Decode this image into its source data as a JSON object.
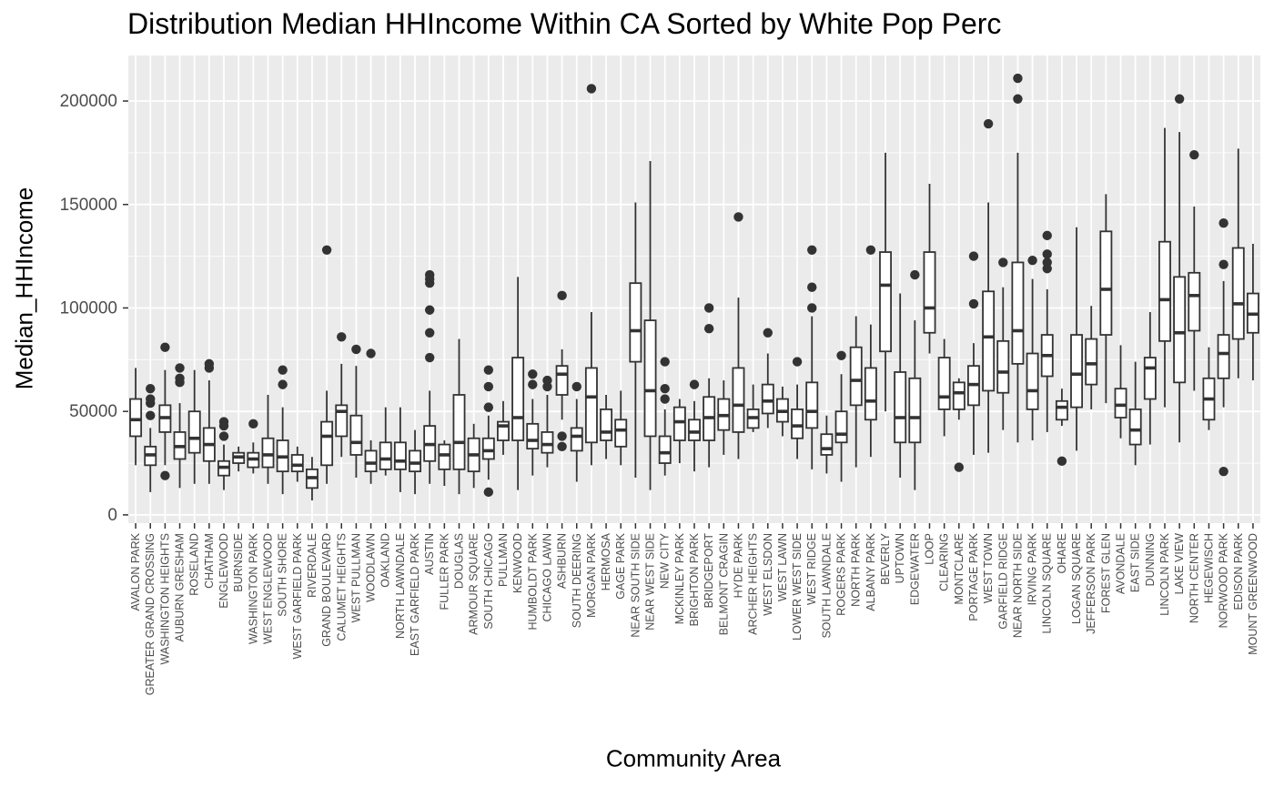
{
  "chart_data": {
    "type": "box",
    "title": "Distribution Median HHIncome Within CA Sorted by White Pop Perc",
    "xlabel": "Community Area",
    "ylabel": "Median_HHIncome",
    "ylim": [
      -4000,
      222000
    ],
    "y_ticks": [
      0,
      50000,
      100000,
      150000,
      200000
    ],
    "y_tick_labels": [
      "0",
      "50000",
      "100000",
      "150000",
      "200000"
    ],
    "grid": true,
    "colors": {
      "panel": "#EBEBEB",
      "grid": "#FFFFFF",
      "box_fill": "#FFFFFF",
      "box_line": "#333333",
      "outlier": "#333333"
    },
    "categories": [
      "AVALON PARK",
      "GREATER GRAND CROSSING",
      "WASHINGTON HEIGHTS",
      "AUBURN GRESHAM",
      "ROSELAND",
      "CHATHAM",
      "ENGLEWOOD",
      "BURNSIDE",
      "WASHINGTON PARK",
      "WEST ENGLEWOOD",
      "SOUTH SHORE",
      "WEST GARFIELD PARK",
      "RIVERDALE",
      "GRAND BOULEVARD",
      "CALUMET HEIGHTS",
      "WEST PULLMAN",
      "WOODLAWN",
      "OAKLAND",
      "NORTH LAWNDALE",
      "EAST GARFIELD PARK",
      "AUSTIN",
      "FULLER PARK",
      "DOUGLAS",
      "ARMOUR SQUARE",
      "SOUTH CHICAGO",
      "PULLMAN",
      "KENWOOD",
      "HUMBOLDT PARK",
      "CHICAGO LAWN",
      "ASHBURN",
      "SOUTH DEERING",
      "MORGAN PARK",
      "HERMOSA",
      "GAGE PARK",
      "NEAR SOUTH SIDE",
      "NEAR WEST SIDE",
      "NEW CITY",
      "MCKINLEY PARK",
      "BRIGHTON PARK",
      "BRIDGEPORT",
      "BELMONT CRAGIN",
      "HYDE PARK",
      "ARCHER HEIGHTS",
      "WEST ELSDON",
      "WEST LAWN",
      "LOWER WEST SIDE",
      "WEST RIDGE",
      "SOUTH LAWNDALE",
      "ROGERS PARK",
      "NORTH PARK",
      "ALBANY PARK",
      "BEVERLY",
      "UPTOWN",
      "EDGEWATER",
      "LOOP",
      "CLEARING",
      "MONTCLARE",
      "PORTAGE PARK",
      "WEST TOWN",
      "GARFIELD RIDGE",
      "NEAR NORTH SIDE",
      "IRVING PARK",
      "LINCOLN SQUARE",
      "OHARE",
      "LOGAN SQUARE",
      "JEFFERSON PARK",
      "FOREST GLEN",
      "AVONDALE",
      "EAST SIDE",
      "DUNNING",
      "LINCOLN PARK",
      "LAKE VIEW",
      "NORTH CENTER",
      "HEGEWISCH",
      "NORWOOD PARK",
      "EDISON PARK",
      "MOUNT GREENWOOD"
    ],
    "boxes": [
      {
        "whisker_low": 24000,
        "q1": 38000,
        "median": 46000,
        "q3": 56000,
        "whisker_high": 71000,
        "outliers": []
      },
      {
        "whisker_low": 11000,
        "q1": 24000,
        "median": 29000,
        "q3": 33000,
        "whisker_high": 42000,
        "outliers": [
          48000,
          54000,
          56000,
          61000
        ]
      },
      {
        "whisker_low": 24000,
        "q1": 40000,
        "median": 47000,
        "q3": 53000,
        "whisker_high": 70000,
        "outliers": [
          19000,
          81000
        ]
      },
      {
        "whisker_low": 13000,
        "q1": 27000,
        "median": 33000,
        "q3": 40000,
        "whisker_high": 54000,
        "outliers": [
          64000,
          66000,
          71000
        ]
      },
      {
        "whisker_low": 15000,
        "q1": 30000,
        "median": 37000,
        "q3": 50000,
        "whisker_high": 70000,
        "outliers": []
      },
      {
        "whisker_low": 15000,
        "q1": 26000,
        "median": 34000,
        "q3": 42000,
        "whisker_high": 65000,
        "outliers": [
          71000,
          73000
        ]
      },
      {
        "whisker_low": 12000,
        "q1": 19000,
        "median": 23000,
        "q3": 26000,
        "whisker_high": 34000,
        "outliers": [
          38000,
          43000,
          45000
        ]
      },
      {
        "whisker_low": 21000,
        "q1": 25000,
        "median": 28000,
        "q3": 30000,
        "whisker_high": 33000,
        "outliers": []
      },
      {
        "whisker_low": 20000,
        "q1": 23000,
        "median": 27000,
        "q3": 30000,
        "whisker_high": 35000,
        "outliers": [
          44000
        ]
      },
      {
        "whisker_low": 15000,
        "q1": 23000,
        "median": 29000,
        "q3": 37000,
        "whisker_high": 58000,
        "outliers": []
      },
      {
        "whisker_low": 10000,
        "q1": 21000,
        "median": 28000,
        "q3": 36000,
        "whisker_high": 52000,
        "outliers": [
          63000,
          70000
        ]
      },
      {
        "whisker_low": 16000,
        "q1": 21000,
        "median": 24000,
        "q3": 29000,
        "whisker_high": 33000,
        "outliers": []
      },
      {
        "whisker_low": 7000,
        "q1": 13000,
        "median": 18000,
        "q3": 22000,
        "whisker_high": 28000,
        "outliers": []
      },
      {
        "whisker_low": 15000,
        "q1": 24000,
        "median": 38000,
        "q3": 45000,
        "whisker_high": 60000,
        "outliers": [
          128000
        ]
      },
      {
        "whisker_low": 28000,
        "q1": 38000,
        "median": 50000,
        "q3": 53000,
        "whisker_high": 73000,
        "outliers": [
          86000
        ]
      },
      {
        "whisker_low": 18000,
        "q1": 29000,
        "median": 35000,
        "q3": 48000,
        "whisker_high": 72000,
        "outliers": [
          80000
        ]
      },
      {
        "whisker_low": 15000,
        "q1": 21000,
        "median": 25000,
        "q3": 31000,
        "whisker_high": 36000,
        "outliers": [
          78000
        ]
      },
      {
        "whisker_low": 19000,
        "q1": 22000,
        "median": 27000,
        "q3": 35000,
        "whisker_high": 52000,
        "outliers": []
      },
      {
        "whisker_low": 11000,
        "q1": 22000,
        "median": 26000,
        "q3": 35000,
        "whisker_high": 52000,
        "outliers": []
      },
      {
        "whisker_low": 10000,
        "q1": 21000,
        "median": 25000,
        "q3": 31000,
        "whisker_high": 41000,
        "outliers": []
      },
      {
        "whisker_low": 15000,
        "q1": 26000,
        "median": 34000,
        "q3": 43000,
        "whisker_high": 60000,
        "outliers": [
          76000,
          88000,
          99000,
          112000,
          114000,
          116000
        ]
      },
      {
        "whisker_low": 14000,
        "q1": 22000,
        "median": 29000,
        "q3": 34000,
        "whisker_high": 36000,
        "outliers": []
      },
      {
        "whisker_low": 10000,
        "q1": 22000,
        "median": 35000,
        "q3": 58000,
        "whisker_high": 85000,
        "outliers": []
      },
      {
        "whisker_low": 13000,
        "q1": 21000,
        "median": 29000,
        "q3": 37000,
        "whisker_high": 44000,
        "outliers": []
      },
      {
        "whisker_low": 17000,
        "q1": 27000,
        "median": 31000,
        "q3": 37000,
        "whisker_high": 48000,
        "outliers": [
          11000,
          52000,
          62000,
          70000
        ]
      },
      {
        "whisker_low": 29000,
        "q1": 36000,
        "median": 43000,
        "q3": 45000,
        "whisker_high": 55000,
        "outliers": []
      },
      {
        "whisker_low": 12000,
        "q1": 36000,
        "median": 47000,
        "q3": 76000,
        "whisker_high": 115000,
        "outliers": []
      },
      {
        "whisker_low": 19000,
        "q1": 32000,
        "median": 36000,
        "q3": 44000,
        "whisker_high": 56000,
        "outliers": [
          63000,
          68000
        ]
      },
      {
        "whisker_low": 23000,
        "q1": 30000,
        "median": 34000,
        "q3": 40000,
        "whisker_high": 58000,
        "outliers": [
          62000,
          65000
        ]
      },
      {
        "whisker_low": 46000,
        "q1": 58000,
        "median": 68000,
        "q3": 72000,
        "whisker_high": 80000,
        "outliers": [
          33000,
          38000,
          106000
        ]
      },
      {
        "whisker_low": 16000,
        "q1": 31000,
        "median": 38000,
        "q3": 42000,
        "whisker_high": 56000,
        "outliers": [
          62000
        ]
      },
      {
        "whisker_low": 24000,
        "q1": 35000,
        "median": 57000,
        "q3": 71000,
        "whisker_high": 98000,
        "outliers": [
          206000
        ]
      },
      {
        "whisker_low": 27000,
        "q1": 36000,
        "median": 40000,
        "q3": 51000,
        "whisker_high": 58000,
        "outliers": []
      },
      {
        "whisker_low": 24000,
        "q1": 33000,
        "median": 41000,
        "q3": 46000,
        "whisker_high": 60000,
        "outliers": []
      },
      {
        "whisker_low": 18000,
        "q1": 74000,
        "median": 89000,
        "q3": 112000,
        "whisker_high": 151000,
        "outliers": []
      },
      {
        "whisker_low": 12000,
        "q1": 38000,
        "median": 60000,
        "q3": 94000,
        "whisker_high": 171000,
        "outliers": []
      },
      {
        "whisker_low": 19000,
        "q1": 25000,
        "median": 30000,
        "q3": 38000,
        "whisker_high": 51000,
        "outliers": [
          56000,
          61000,
          74000
        ]
      },
      {
        "whisker_low": 25000,
        "q1": 36000,
        "median": 45000,
        "q3": 52000,
        "whisker_high": 56000,
        "outliers": []
      },
      {
        "whisker_low": 21000,
        "q1": 36000,
        "median": 40000,
        "q3": 46000,
        "whisker_high": 55000,
        "outliers": [
          63000
        ]
      },
      {
        "whisker_low": 23000,
        "q1": 36000,
        "median": 47000,
        "q3": 57000,
        "whisker_high": 66000,
        "outliers": [
          90000,
          100000
        ]
      },
      {
        "whisker_low": 29000,
        "q1": 41000,
        "median": 48000,
        "q3": 56000,
        "whisker_high": 65000,
        "outliers": []
      },
      {
        "whisker_low": 27000,
        "q1": 40000,
        "median": 53000,
        "q3": 71000,
        "whisker_high": 105000,
        "outliers": [
          144000
        ]
      },
      {
        "whisker_low": 40000,
        "q1": 42000,
        "median": 47000,
        "q3": 51000,
        "whisker_high": 63000,
        "outliers": []
      },
      {
        "whisker_low": 42000,
        "q1": 49000,
        "median": 55000,
        "q3": 63000,
        "whisker_high": 78000,
        "outliers": [
          88000
        ]
      },
      {
        "whisker_low": 38000,
        "q1": 45000,
        "median": 50000,
        "q3": 56000,
        "whisker_high": 62000,
        "outliers": []
      },
      {
        "whisker_low": 27000,
        "q1": 37000,
        "median": 43000,
        "q3": 51000,
        "whisker_high": 63000,
        "outliers": [
          74000
        ]
      },
      {
        "whisker_low": 22000,
        "q1": 42000,
        "median": 50000,
        "q3": 64000,
        "whisker_high": 96000,
        "outliers": [
          100000,
          110000,
          128000
        ]
      },
      {
        "whisker_low": 20000,
        "q1": 29000,
        "median": 32000,
        "q3": 39000,
        "whisker_high": 48000,
        "outliers": []
      },
      {
        "whisker_low": 16000,
        "q1": 35000,
        "median": 39000,
        "q3": 50000,
        "whisker_high": 68000,
        "outliers": [
          77000
        ]
      },
      {
        "whisker_low": 23000,
        "q1": 53000,
        "median": 65000,
        "q3": 81000,
        "whisker_high": 96000,
        "outliers": []
      },
      {
        "whisker_low": 28000,
        "q1": 46000,
        "median": 55000,
        "q3": 71000,
        "whisker_high": 92000,
        "outliers": [
          128000
        ]
      },
      {
        "whisker_low": 50000,
        "q1": 79000,
        "median": 111000,
        "q3": 127000,
        "whisker_high": 175000,
        "outliers": []
      },
      {
        "whisker_low": 18000,
        "q1": 35000,
        "median": 47000,
        "q3": 69000,
        "whisker_high": 107000,
        "outliers": []
      },
      {
        "whisker_low": 12000,
        "q1": 35000,
        "median": 47000,
        "q3": 66000,
        "whisker_high": 94000,
        "outliers": [
          116000
        ]
      },
      {
        "whisker_low": 78000,
        "q1": 88000,
        "median": 100000,
        "q3": 127000,
        "whisker_high": 160000,
        "outliers": []
      },
      {
        "whisker_low": 38000,
        "q1": 51000,
        "median": 57000,
        "q3": 76000,
        "whisker_high": 85000,
        "outliers": []
      },
      {
        "whisker_low": 46000,
        "q1": 51000,
        "median": 59000,
        "q3": 64000,
        "whisker_high": 66000,
        "outliers": [
          23000
        ]
      },
      {
        "whisker_low": 29000,
        "q1": 53000,
        "median": 63000,
        "q3": 72000,
        "whisker_high": 83000,
        "outliers": [
          102000,
          125000
        ]
      },
      {
        "whisker_low": 30000,
        "q1": 60000,
        "median": 86000,
        "q3": 108000,
        "whisker_high": 151000,
        "outliers": [
          189000
        ]
      },
      {
        "whisker_low": 41000,
        "q1": 59000,
        "median": 69000,
        "q3": 84000,
        "whisker_high": 110000,
        "outliers": [
          122000
        ]
      },
      {
        "whisker_low": 35000,
        "q1": 73000,
        "median": 89000,
        "q3": 122000,
        "whisker_high": 175000,
        "outliers": [
          201000,
          211000
        ]
      },
      {
        "whisker_low": 36000,
        "q1": 51000,
        "median": 60000,
        "q3": 78000,
        "whisker_high": 114000,
        "outliers": [
          123000
        ]
      },
      {
        "whisker_low": 40000,
        "q1": 67000,
        "median": 77000,
        "q3": 87000,
        "whisker_high": 109000,
        "outliers": [
          119000,
          122000,
          126000,
          135000
        ]
      },
      {
        "whisker_low": 43000,
        "q1": 46000,
        "median": 52000,
        "q3": 55000,
        "whisker_high": 61000,
        "outliers": [
          26000
        ]
      },
      {
        "whisker_low": 31000,
        "q1": 52000,
        "median": 68000,
        "q3": 87000,
        "whisker_high": 139000,
        "outliers": []
      },
      {
        "whisker_low": 51000,
        "q1": 63000,
        "median": 73000,
        "q3": 85000,
        "whisker_high": 101000,
        "outliers": []
      },
      {
        "whisker_low": 54000,
        "q1": 87000,
        "median": 109000,
        "q3": 137000,
        "whisker_high": 155000,
        "outliers": []
      },
      {
        "whisker_low": 37000,
        "q1": 47000,
        "median": 53000,
        "q3": 61000,
        "whisker_high": 82000,
        "outliers": []
      },
      {
        "whisker_low": 24000,
        "q1": 34000,
        "median": 41000,
        "q3": 51000,
        "whisker_high": 74000,
        "outliers": []
      },
      {
        "whisker_low": 34000,
        "q1": 56000,
        "median": 71000,
        "q3": 76000,
        "whisker_high": 98000,
        "outliers": []
      },
      {
        "whisker_low": 52000,
        "q1": 84000,
        "median": 104000,
        "q3": 132000,
        "whisker_high": 187000,
        "outliers": []
      },
      {
        "whisker_low": 35000,
        "q1": 64000,
        "median": 88000,
        "q3": 115000,
        "whisker_high": 185000,
        "outliers": [
          201000
        ]
      },
      {
        "whisker_low": 60000,
        "q1": 89000,
        "median": 106000,
        "q3": 117000,
        "whisker_high": 149000,
        "outliers": [
          174000
        ]
      },
      {
        "whisker_low": 41000,
        "q1": 46000,
        "median": 56000,
        "q3": 66000,
        "whisker_high": 81000,
        "outliers": []
      },
      {
        "whisker_low": 52000,
        "q1": 66000,
        "median": 78000,
        "q3": 87000,
        "whisker_high": 113000,
        "outliers": [
          21000,
          121000,
          141000
        ]
      },
      {
        "whisker_low": 66000,
        "q1": 85000,
        "median": 102000,
        "q3": 129000,
        "whisker_high": 177000,
        "outliers": []
      },
      {
        "whisker_low": 65000,
        "q1": 88000,
        "median": 97000,
        "q3": 107000,
        "whisker_high": 131000,
        "outliers": []
      }
    ]
  }
}
